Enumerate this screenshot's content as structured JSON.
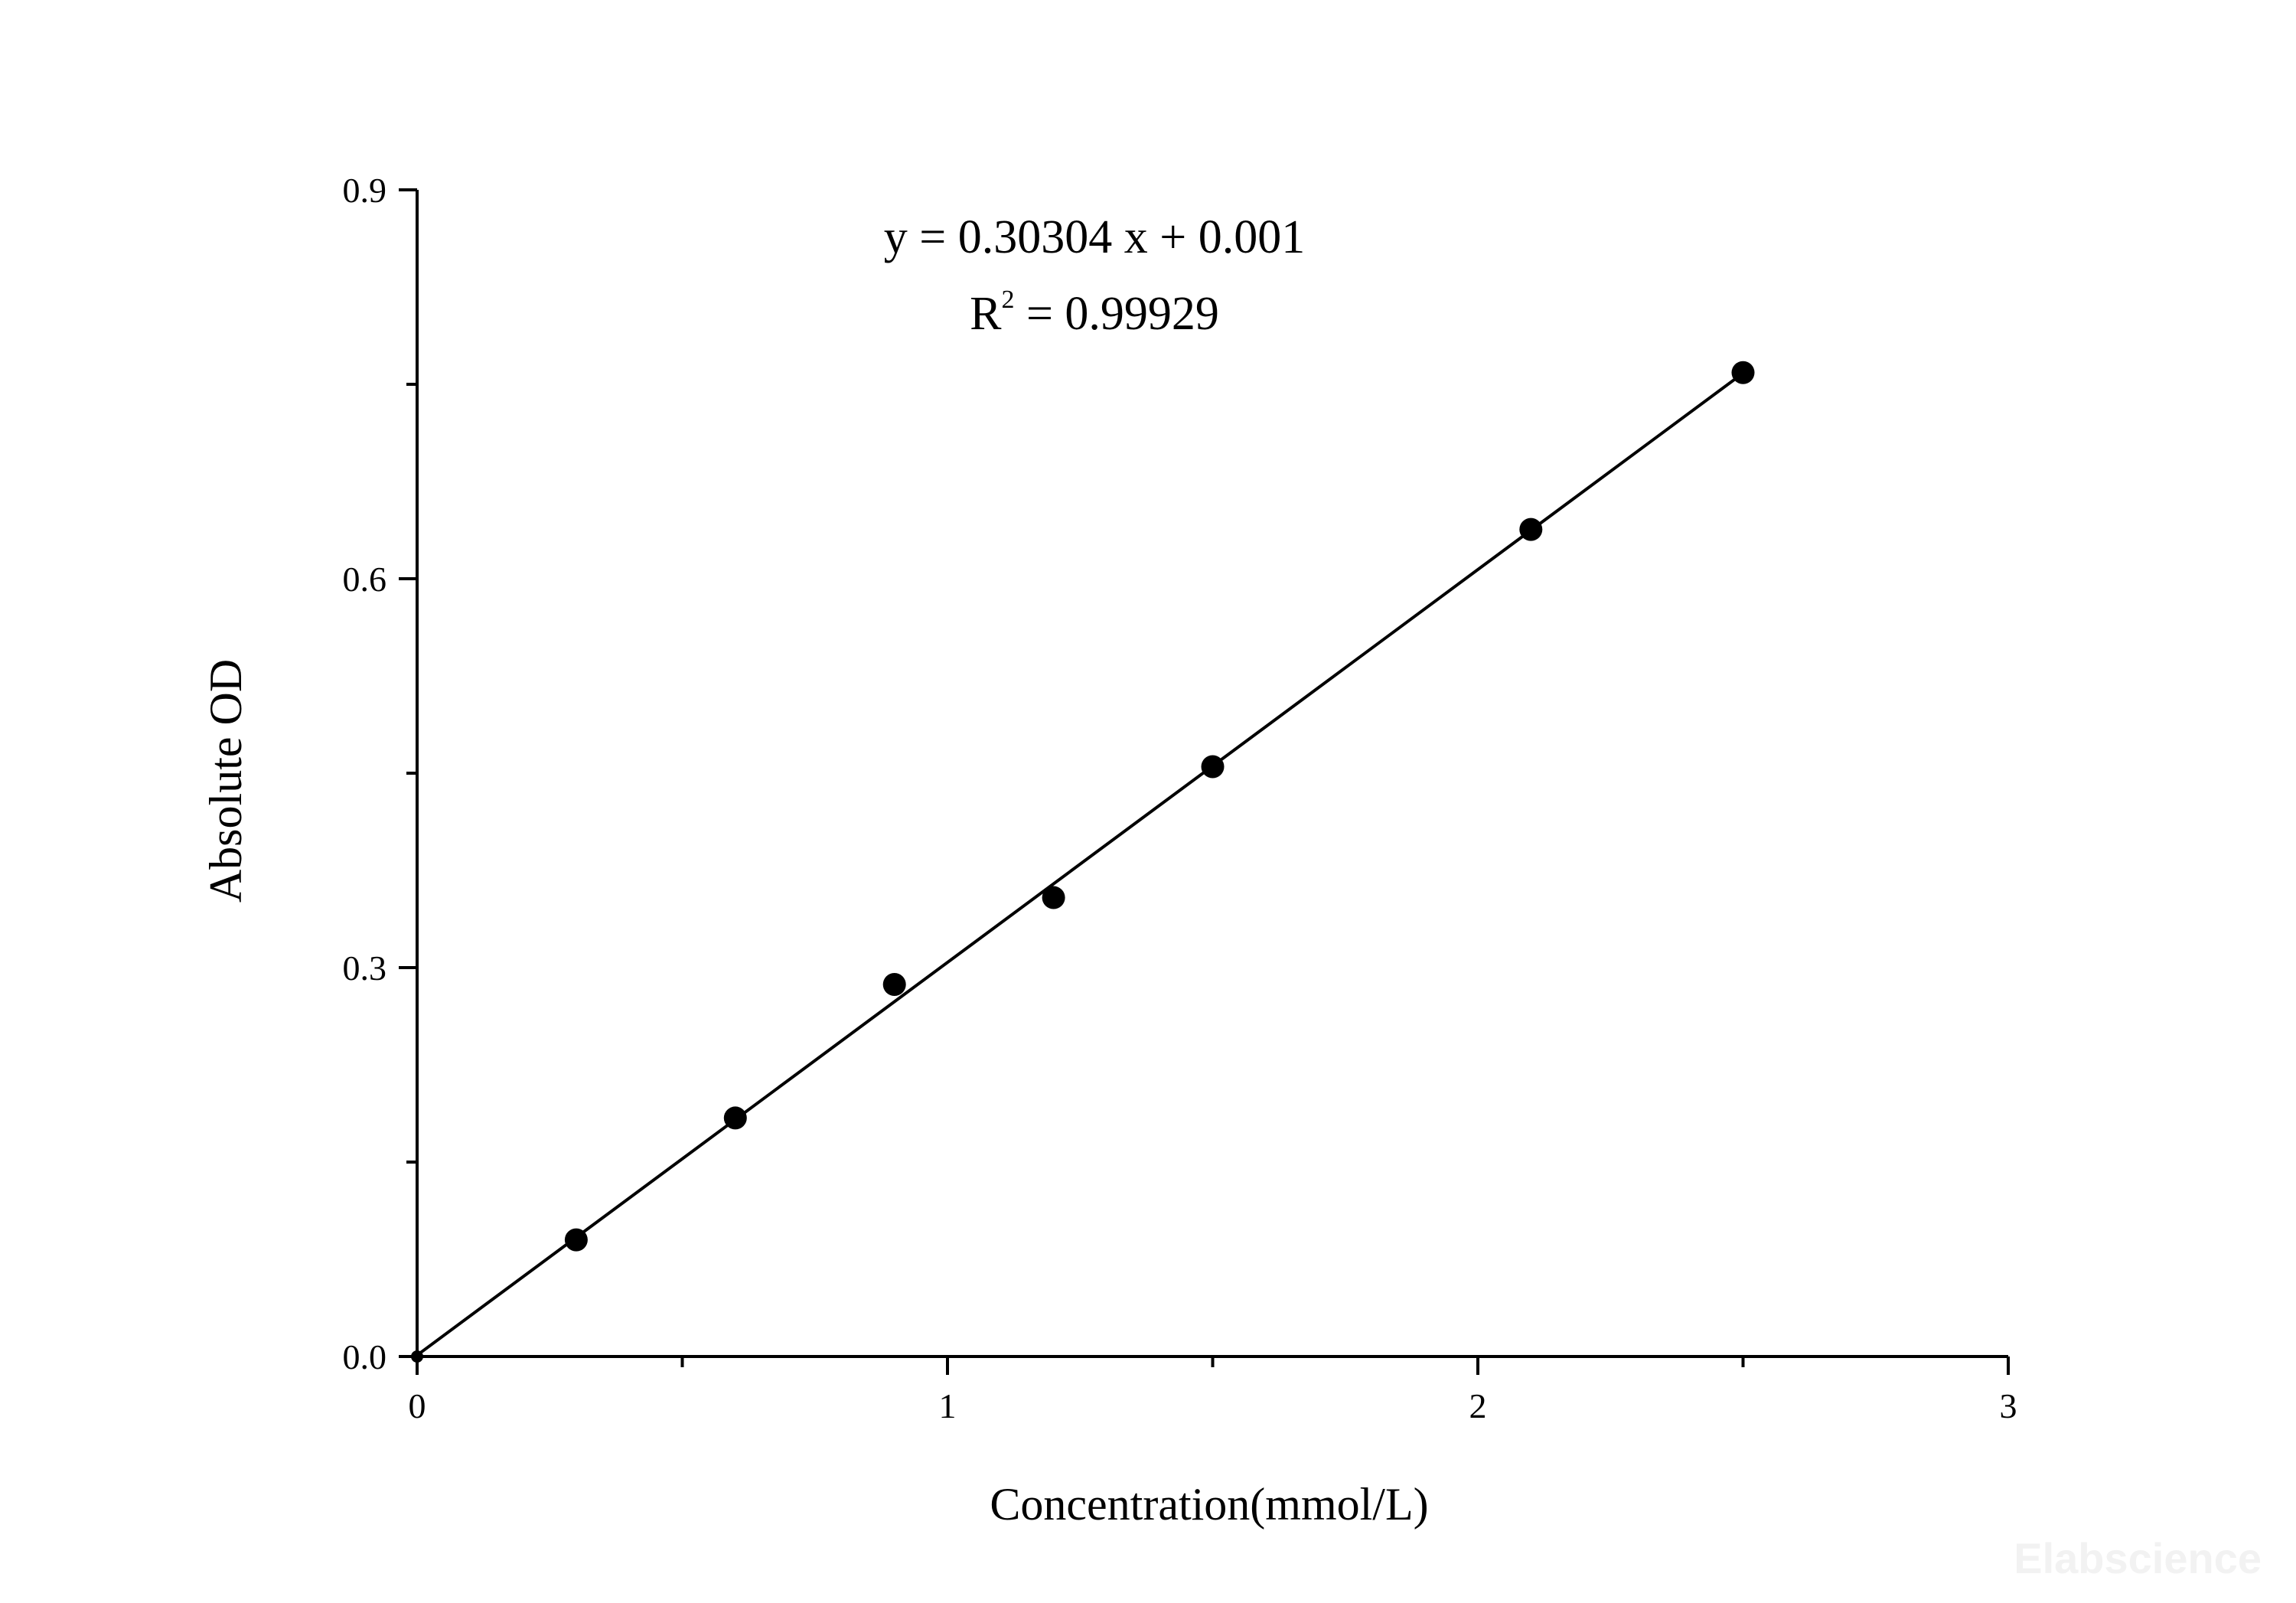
{
  "chart_data": {
    "type": "scatter",
    "xlabel": "Concentration(mmol/L)",
    "ylabel": "Absolute OD",
    "xlim": [
      0,
      3
    ],
    "ylim": [
      0,
      0.9
    ],
    "x_ticks": [
      "0",
      "1",
      "2",
      "3"
    ],
    "y_ticks": [
      "0.0",
      "0.3",
      "0.6",
      "0.9"
    ],
    "x_tick_values": [
      0,
      1,
      2,
      3
    ],
    "y_tick_values": [
      0.0,
      0.3,
      0.6,
      0.9
    ],
    "x_minor_tick_values": [
      0.5,
      1.5,
      2.5
    ],
    "y_minor_tick_values": [
      0.15,
      0.45,
      0.75
    ],
    "grid": false,
    "series": [
      {
        "x": [
          0,
          0.3,
          0.6,
          0.9,
          1.2,
          1.5,
          2.1,
          2.5
        ],
        "y": [
          0.0,
          0.09,
          0.184,
          0.287,
          0.354,
          0.455,
          0.638,
          0.759
        ]
      }
    ],
    "fit_line": {
      "slope": 0.30304,
      "intercept": 0.001,
      "x_range": [
        0,
        2.5
      ]
    },
    "annotations": {
      "equation": "y = 0.30304 x + 0.001",
      "r2_prefix": "R",
      "r2_sup": "2",
      "r2_rest": " = 0.99929"
    },
    "marker_color": "#000000",
    "line_color": "#000000"
  },
  "watermark": "Elabscience"
}
